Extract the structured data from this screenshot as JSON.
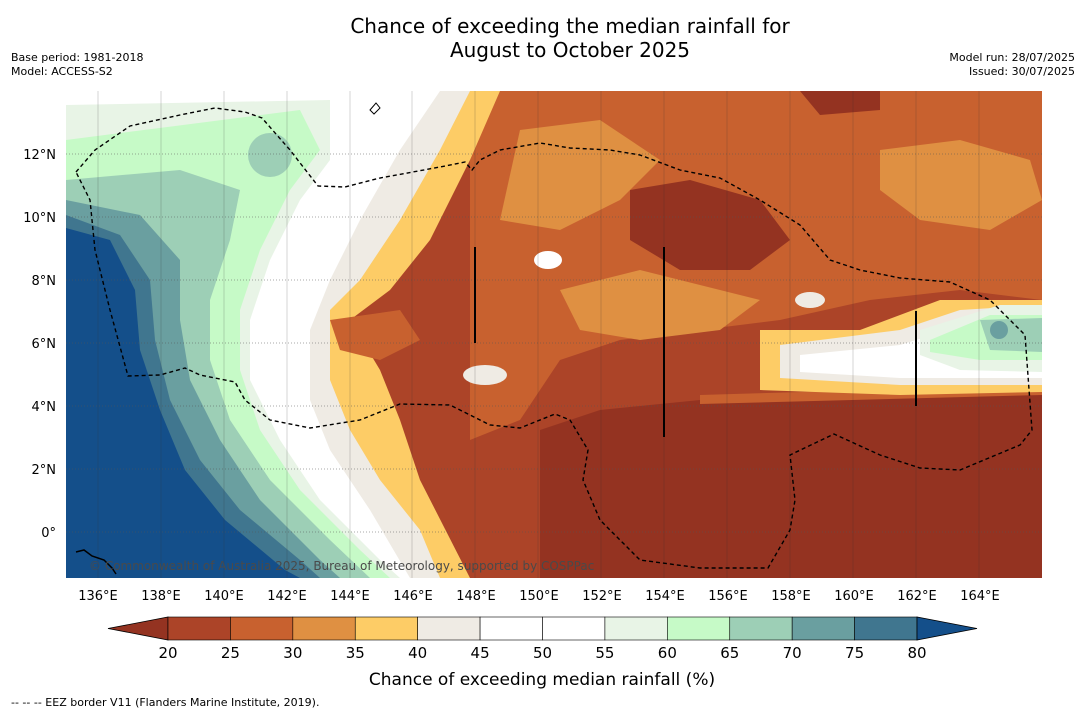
{
  "title_line1": "Chance of exceeding the median rainfall for",
  "title_line2": "August to October 2025",
  "base_period": "Base period: 1981-2018",
  "model": "Model: ACCESS-S2",
  "model_run": "Model run: 28/07/2025",
  "issued": "Issued: 30/07/2025",
  "copyright": "© Commonwealth of Australia 2025, Bureau of Meteorology, supported by COSPPac",
  "footnote": "--  --  -- EEZ border V11 (Flanders Marine Institute, 2019).",
  "lon_labels": [
    "136°E",
    "138°E",
    "140°E",
    "142°E",
    "144°E",
    "146°E",
    "148°E",
    "150°E",
    "152°E",
    "154°E",
    "156°E",
    "158°E",
    "160°E",
    "162°E",
    "164°E"
  ],
  "lon_values": [
    136,
    138,
    140,
    142,
    144,
    146,
    148,
    150,
    152,
    154,
    156,
    158,
    160,
    162,
    164
  ],
  "lat_labels": [
    "12°N",
    "10°N",
    "8°N",
    "6°N",
    "4°N",
    "2°N",
    "0°"
  ],
  "lat_values": [
    12,
    10,
    8,
    6,
    4,
    2,
    0
  ],
  "colorbar": {
    "title": "Chance of exceeding median rainfall (%)",
    "ticks": [
      "20",
      "25",
      "30",
      "35",
      "40",
      "45",
      "50",
      "55",
      "60",
      "65",
      "70",
      "75",
      "80"
    ],
    "colors": [
      "#ac4428",
      "#c8612f",
      "#df9042",
      "#fdcc66",
      "#efebe4",
      "#ffffff",
      "#ffffff",
      "#e8f4e6",
      "#c6fac7",
      "#9dcfb6",
      "#6a9fa0",
      "#40768f"
    ],
    "under_color": "#943321",
    "over_color": "#144f8a"
  },
  "colors": {
    "very_dry": "#943321",
    "dry": "#ac4428",
    "dry2": "#c8612f",
    "dry3": "#df9042",
    "dry4": "#fdcc66",
    "neutral": "#efebe4",
    "wet1": "#e8f4e6",
    "wet2": "#c6fac7",
    "wet3": "#9dcfb6",
    "wet4": "#6a9fa0",
    "wet5": "#40768f",
    "very_wet": "#144f8a"
  }
}
